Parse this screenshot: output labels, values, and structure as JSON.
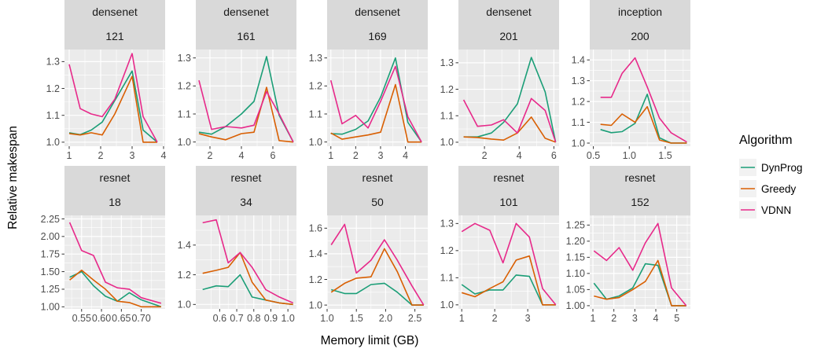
{
  "chart_data": {
    "type": "line",
    "xlabel": "Memory limit (GB)",
    "ylabel": "Relative makespan",
    "legend": {
      "title": "Algorithm",
      "placement": "right",
      "entries": [
        {
          "name": "DynProg",
          "color": "#1b9e77"
        },
        {
          "name": "Greedy",
          "color": "#d95f02"
        },
        {
          "name": "VDNN",
          "color": "#e7298a"
        }
      ]
    },
    "grid": true,
    "panels": [
      {
        "strip": [
          "densenet",
          "121"
        ],
        "xlim": [
          0.85,
          4.05
        ],
        "ylim": [
          0.985,
          1.345
        ],
        "xticks": [
          1,
          2,
          3,
          4
        ],
        "xticklabels": [
          "1",
          "2",
          "3",
          "4"
        ],
        "yticks": [
          1.0,
          1.1,
          1.2,
          1.3
        ],
        "yticklabels": [
          "1.0",
          "1.1",
          "1.2",
          "1.3"
        ],
        "x": [
          1.0,
          1.35,
          1.7,
          2.05,
          2.45,
          3.0,
          3.35,
          3.8
        ],
        "series": [
          {
            "name": "DynProg",
            "values": [
              1.035,
              1.028,
              1.045,
              1.075,
              1.155,
              1.265,
              1.045,
              1.0
            ]
          },
          {
            "name": "Greedy",
            "values": [
              1.032,
              1.027,
              1.035,
              1.027,
              1.105,
              1.245,
              1.0,
              1.0
            ]
          },
          {
            "name": "VDNN",
            "values": [
              1.29,
              1.125,
              1.105,
              1.095,
              1.16,
              1.33,
              1.095,
              1.0
            ]
          }
        ]
      },
      {
        "strip": [
          "densenet",
          "161"
        ],
        "xlim": [
          1.1,
          7.5
        ],
        "ylim": [
          0.985,
          1.33
        ],
        "xticks": [
          2,
          4,
          6
        ],
        "xticklabels": [
          "2",
          "4",
          "6"
        ],
        "yticks": [
          1.0,
          1.1,
          1.2,
          1.3
        ],
        "yticklabels": [
          "1.0",
          "1.1",
          "1.2",
          "1.3"
        ],
        "x": [
          1.3,
          2.1,
          3.0,
          4.0,
          4.8,
          5.6,
          6.4,
          7.3
        ],
        "series": [
          {
            "name": "DynProg",
            "values": [
              1.035,
              1.028,
              1.055,
              1.1,
              1.145,
              1.305,
              1.095,
              1.0
            ]
          },
          {
            "name": "Greedy",
            "values": [
              1.03,
              1.018,
              1.008,
              1.03,
              1.035,
              1.195,
              1.005,
              1.0
            ]
          },
          {
            "name": "VDNN",
            "values": [
              1.22,
              1.045,
              1.055,
              1.05,
              1.06,
              1.18,
              1.1,
              1.0
            ]
          }
        ]
      },
      {
        "strip": [
          "densenet",
          "169"
        ],
        "xlim": [
          0.85,
          4.9
        ],
        "ylim": [
          0.985,
          1.33
        ],
        "xticks": [
          1,
          2,
          3,
          4
        ],
        "xticklabels": [
          "1",
          "2",
          "3",
          "4"
        ],
        "x": [
          1.0,
          1.45,
          2.0,
          2.5,
          3.0,
          3.6,
          4.1,
          4.65
        ],
        "yticks": [
          1.0,
          1.1,
          1.2,
          1.3
        ],
        "yticklabels": [
          "1.0",
          "1.1",
          "1.2",
          "1.3"
        ],
        "series": [
          {
            "name": "DynProg",
            "values": [
              1.03,
              1.028,
              1.045,
              1.075,
              1.16,
              1.3,
              1.07,
              1.0
            ]
          },
          {
            "name": "Greedy",
            "values": [
              1.032,
              1.01,
              1.018,
              1.025,
              1.035,
              1.205,
              1.0,
              1.0
            ]
          },
          {
            "name": "VDNN",
            "values": [
              1.22,
              1.065,
              1.095,
              1.05,
              1.145,
              1.27,
              1.09,
              1.0
            ]
          }
        ]
      },
      {
        "strip": [
          "densenet",
          "201"
        ],
        "xlim": [
          0.5,
          6.3
        ],
        "ylim": [
          0.985,
          1.35
        ],
        "xticks": [
          2,
          4,
          6
        ],
        "xticklabels": [
          "2",
          "4",
          "6"
        ],
        "yticks": [
          1.0,
          1.1,
          1.2,
          1.3
        ],
        "yticklabels": [
          "1.0",
          "1.1",
          "1.2",
          "1.3"
        ],
        "x": [
          0.8,
          1.6,
          2.4,
          3.1,
          3.9,
          4.7,
          5.5,
          6.1
        ],
        "series": [
          {
            "name": "DynProg",
            "values": [
              1.02,
              1.02,
              1.035,
              1.075,
              1.145,
              1.32,
              1.19,
              1.0
            ]
          },
          {
            "name": "Greedy",
            "values": [
              1.02,
              1.018,
              1.012,
              1.008,
              1.035,
              1.095,
              1.015,
              1.0
            ]
          },
          {
            "name": "VDNN",
            "values": [
              1.16,
              1.06,
              1.065,
              1.085,
              1.035,
              1.165,
              1.12,
              1.0
            ]
          }
        ]
      },
      {
        "strip": [
          "inception",
          "200"
        ],
        "xlim": [
          0.45,
          1.85
        ],
        "ylim": [
          0.985,
          1.45
        ],
        "xticks": [
          0.5,
          1.0,
          1.5
        ],
        "xticklabels": [
          "0.5",
          "1.0",
          "1.5"
        ],
        "yticks": [
          1.0,
          1.1,
          1.2,
          1.3,
          1.4
        ],
        "yticklabels": [
          "1.0",
          "1.1",
          "1.2",
          "1.3",
          "1.4"
        ],
        "x": [
          0.6,
          0.75,
          0.9,
          1.08,
          1.25,
          1.42,
          1.58,
          1.8
        ],
        "series": [
          {
            "name": "DynProg",
            "values": [
              1.065,
              1.05,
              1.055,
              1.095,
              1.235,
              1.025,
              1.0,
              1.0
            ]
          },
          {
            "name": "Greedy",
            "values": [
              1.09,
              1.085,
              1.14,
              1.1,
              1.175,
              1.015,
              1.0,
              1.0
            ]
          },
          {
            "name": "VDNN",
            "values": [
              1.22,
              1.22,
              1.335,
              1.41,
              1.27,
              1.12,
              1.05,
              1.005
            ]
          }
        ]
      },
      {
        "strip": [
          "resnet",
          "18"
        ],
        "xlim": [
          0.507,
          0.76
        ],
        "ylim": [
          0.97,
          2.3
        ],
        "xticks": [
          0.55,
          0.6,
          0.65,
          0.7
        ],
        "xticklabels": [
          "0.55",
          "0.60",
          "0.65",
          "0.70"
        ],
        "yticks": [
          1.0,
          1.25,
          1.5,
          1.75,
          2.0,
          2.25
        ],
        "yticklabels": [
          "1.00",
          "1.25",
          "1.50",
          "1.75",
          "2.00",
          "2.25"
        ],
        "x": [
          0.52,
          0.55,
          0.58,
          0.61,
          0.64,
          0.67,
          0.7,
          0.75
        ],
        "series": [
          {
            "name": "DynProg",
            "values": [
              1.42,
              1.5,
              1.3,
              1.15,
              1.08,
              1.2,
              1.1,
              1.0
            ]
          },
          {
            "name": "Greedy",
            "values": [
              1.38,
              1.52,
              1.38,
              1.25,
              1.08,
              1.06,
              1.0,
              1.0
            ]
          },
          {
            "name": "VDNN",
            "values": [
              2.2,
              1.8,
              1.73,
              1.35,
              1.27,
              1.25,
              1.13,
              1.05
            ]
          }
        ]
      },
      {
        "strip": [
          "resnet",
          "34"
        ],
        "xlim": [
          0.46,
          1.05
        ],
        "ylim": [
          0.97,
          1.6
        ],
        "xticks": [
          0.6,
          0.7,
          0.8,
          0.9,
          1.0
        ],
        "xticklabels": [
          "0.6",
          "0.7",
          "0.8",
          "0.9",
          "1.0"
        ],
        "yticks": [
          1.0,
          1.2,
          1.4
        ],
        "yticklabels": [
          "1.0",
          "1.2",
          "1.4"
        ],
        "x": [
          0.5,
          0.58,
          0.65,
          0.72,
          0.79,
          0.87,
          0.95,
          1.03
        ],
        "series": [
          {
            "name": "DynProg",
            "values": [
              1.1,
              1.125,
              1.12,
              1.2,
              1.05,
              1.03,
              1.01,
              1.0
            ]
          },
          {
            "name": "Greedy",
            "values": [
              1.21,
              1.23,
              1.25,
              1.35,
              1.15,
              1.03,
              1.01,
              1.0
            ]
          },
          {
            "name": "VDNN",
            "values": [
              1.55,
              1.57,
              1.28,
              1.35,
              1.25,
              1.1,
              1.05,
              1.01
            ]
          }
        ]
      },
      {
        "strip": [
          "resnet",
          "50"
        ],
        "xlim": [
          1.0,
          2.72
        ],
        "ylim": [
          0.97,
          1.7
        ],
        "xticks": [
          1.0,
          1.5,
          2.0,
          2.5
        ],
        "xticklabels": [
          "1.0",
          "1.5",
          "2.0",
          "2.5"
        ],
        "yticks": [
          1.0,
          1.2,
          1.4,
          1.6
        ],
        "yticklabels": [
          "1.0",
          "1.2",
          "1.4",
          "1.6"
        ],
        "x": [
          1.07,
          1.3,
          1.5,
          1.75,
          1.98,
          2.2,
          2.45,
          2.65
        ],
        "series": [
          {
            "name": "DynProg",
            "values": [
              1.12,
              1.09,
              1.09,
              1.16,
              1.17,
              1.1,
              1.0,
              1.0
            ]
          },
          {
            "name": "Greedy",
            "values": [
              1.1,
              1.17,
              1.21,
              1.22,
              1.44,
              1.26,
              1.0,
              1.0
            ]
          },
          {
            "name": "VDNN",
            "values": [
              1.47,
              1.63,
              1.25,
              1.35,
              1.51,
              1.35,
              1.15,
              1.0
            ]
          }
        ]
      },
      {
        "strip": [
          "resnet",
          "101"
        ],
        "xlim": [
          0.9,
          3.95
        ],
        "ylim": [
          0.985,
          1.33
        ],
        "xticks": [
          1,
          2,
          3
        ],
        "xticklabels": [
          "1",
          "2",
          "3"
        ],
        "yticks": [
          1.0,
          1.1,
          1.2,
          1.3
        ],
        "yticklabels": [
          "1.0",
          "1.1",
          "1.2",
          "1.3"
        ],
        "x": [
          1.0,
          1.4,
          1.85,
          2.25,
          2.65,
          3.05,
          3.45,
          3.85
        ],
        "series": [
          {
            "name": "DynProg",
            "values": [
              1.075,
              1.04,
              1.055,
              1.055,
              1.11,
              1.105,
              1.0,
              1.0
            ]
          },
          {
            "name": "Greedy",
            "values": [
              1.045,
              1.03,
              1.06,
              1.085,
              1.165,
              1.18,
              1.0,
              1.0
            ]
          },
          {
            "name": "VDNN",
            "values": [
              1.27,
              1.3,
              1.275,
              1.155,
              1.3,
              1.25,
              1.06,
              1.0
            ]
          }
        ]
      },
      {
        "strip": [
          "resnet",
          "152"
        ],
        "xlim": [
          0.85,
          5.65
        ],
        "ylim": [
          0.99,
          1.28
        ],
        "xticks": [
          1,
          2,
          3,
          4,
          5
        ],
        "xticklabels": [
          "1",
          "2",
          "3",
          "4",
          "5"
        ],
        "yticks": [
          1.0,
          1.05,
          1.1,
          1.15,
          1.2,
          1.25
        ],
        "yticklabels": [
          "1.00",
          "1.05",
          "1.10",
          "1.15",
          "1.20",
          "1.25"
        ],
        "x": [
          1.05,
          1.65,
          2.25,
          2.9,
          3.5,
          4.1,
          4.75,
          5.45
        ],
        "series": [
          {
            "name": "DynProg",
            "values": [
              1.07,
              1.02,
              1.03,
              1.055,
              1.13,
              1.125,
              1.0,
              1.0
            ]
          },
          {
            "name": "Greedy",
            "values": [
              1.03,
              1.02,
              1.025,
              1.05,
              1.075,
              1.14,
              1.0,
              1.0
            ]
          },
          {
            "name": "VDNN",
            "values": [
              1.17,
              1.14,
              1.18,
              1.11,
              1.195,
              1.255,
              1.055,
              1.0
            ]
          }
        ]
      }
    ]
  }
}
